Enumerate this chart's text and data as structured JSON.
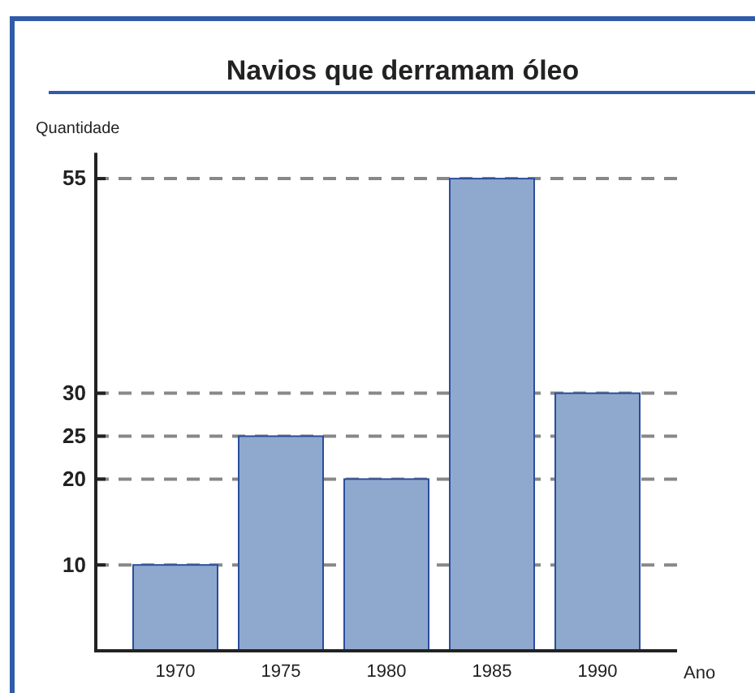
{
  "chart_data": {
    "type": "bar",
    "title": "Navios que derramam óleo",
    "ylabel": "Quantidade",
    "xlabel": "Ano",
    "categories": [
      "1970",
      "1975",
      "1980",
      "1985",
      "1990"
    ],
    "values": [
      10,
      25,
      20,
      55,
      30
    ],
    "color": "#8fa9ce",
    "ylim": [
      0,
      58
    ],
    "yticks": [
      10,
      20,
      25,
      30,
      55
    ],
    "grid": "y"
  }
}
